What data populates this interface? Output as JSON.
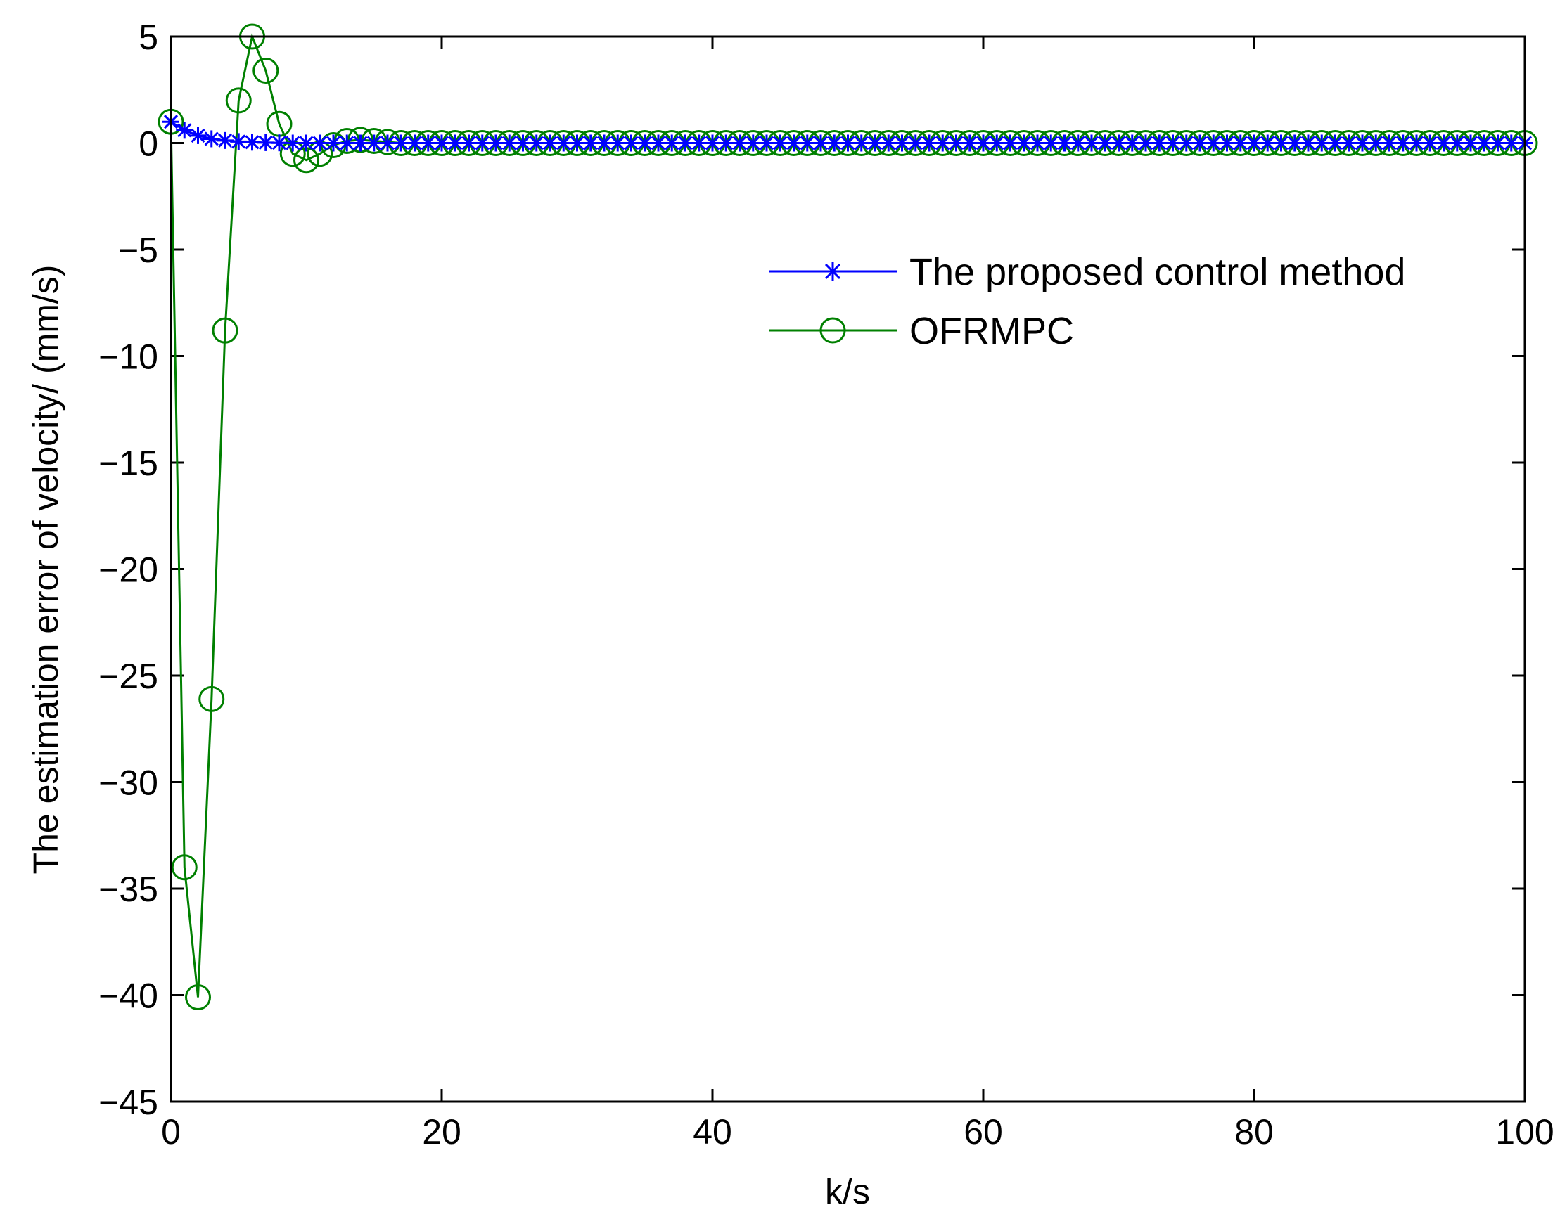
{
  "chart_data": {
    "type": "line",
    "title": "",
    "xlabel": "k/s",
    "ylabel": "The estimation error of velocity/ (mm/s)",
    "xlim": [
      0,
      100
    ],
    "ylim": [
      -45,
      5
    ],
    "xticks": [
      0,
      20,
      40,
      60,
      80,
      100
    ],
    "xtick_labels": [
      "0",
      "20",
      "40",
      "60",
      "80",
      "100"
    ],
    "yticks": [
      5,
      0,
      -5,
      -10,
      -15,
      -20,
      -25,
      -30,
      -35,
      -40,
      -45
    ],
    "ytick_labels": [
      "5",
      "0",
      "−5",
      "−10",
      "−15",
      "−20",
      "−25",
      "−30",
      "−35",
      "−40",
      "−45"
    ],
    "grid": false,
    "legend_position": "upper-right",
    "series": [
      {
        "name": "The proposed control method",
        "color": "#0000ff",
        "marker": "asterisk",
        "x_start": 0,
        "x_step": 1,
        "values": [
          1.0,
          0.6,
          0.35,
          0.2,
          0.12,
          0.07,
          0.04,
          0.02,
          0.01,
          0.0,
          0.0,
          0.0,
          0.0,
          0.0,
          0.0,
          0.0,
          0.0,
          0.0,
          0.0,
          0.0,
          0.0,
          0.0,
          0.0,
          0.0,
          0.0,
          0.0,
          0.0,
          0.0,
          0.0,
          0.0,
          0.0,
          0.0,
          0.0,
          0.0,
          0.0,
          0.0,
          0.0,
          0.0,
          0.0,
          0.0,
          0.0,
          0.0,
          0.0,
          0.0,
          0.0,
          0.0,
          0.0,
          0.0,
          0.0,
          0.0,
          0.0,
          0.0,
          0.0,
          0.0,
          0.0,
          0.0,
          0.0,
          0.0,
          0.0,
          0.0,
          0.0,
          0.0,
          0.0,
          0.0,
          0.0,
          0.0,
          0.0,
          0.0,
          0.0,
          0.0,
          0.0,
          0.0,
          0.0,
          0.0,
          0.0,
          0.0,
          0.0,
          0.0,
          0.0,
          0.0,
          0.0,
          0.0,
          0.0,
          0.0,
          0.0,
          0.0,
          0.0,
          0.0,
          0.0,
          0.0,
          0.0,
          0.0,
          0.0,
          0.0,
          0.0,
          0.0,
          0.0,
          0.0,
          0.0,
          0.0,
          0.0
        ]
      },
      {
        "name": "OFRMPC",
        "color": "#008000",
        "marker": "circle",
        "x_start": 0,
        "x_step": 1,
        "values": [
          1.0,
          -34.0,
          -40.1,
          -26.1,
          -8.8,
          2.0,
          5.0,
          3.4,
          0.9,
          -0.5,
          -0.8,
          -0.5,
          -0.1,
          0.1,
          0.15,
          0.1,
          0.05,
          0.0,
          0.0,
          0.0,
          0.0,
          0.0,
          0.0,
          0.0,
          0.0,
          0.0,
          0.0,
          0.0,
          0.0,
          0.0,
          0.0,
          0.0,
          0.0,
          0.0,
          0.0,
          0.0,
          0.0,
          0.0,
          0.0,
          0.0,
          0.0,
          0.0,
          0.0,
          0.0,
          0.0,
          0.0,
          0.0,
          0.0,
          0.0,
          0.0,
          0.0,
          0.0,
          0.0,
          0.0,
          0.0,
          0.0,
          0.0,
          0.0,
          0.0,
          0.0,
          0.0,
          0.0,
          0.0,
          0.0,
          0.0,
          0.0,
          0.0,
          0.0,
          0.0,
          0.0,
          0.0,
          0.0,
          0.0,
          0.0,
          0.0,
          0.0,
          0.0,
          0.0,
          0.0,
          0.0,
          0.0,
          0.0,
          0.0,
          0.0,
          0.0,
          0.0,
          0.0,
          0.0,
          0.0,
          0.0,
          0.0,
          0.0,
          0.0,
          0.0,
          0.0,
          0.0,
          0.0,
          0.0,
          0.0,
          0.0,
          0.0
        ]
      }
    ]
  }
}
